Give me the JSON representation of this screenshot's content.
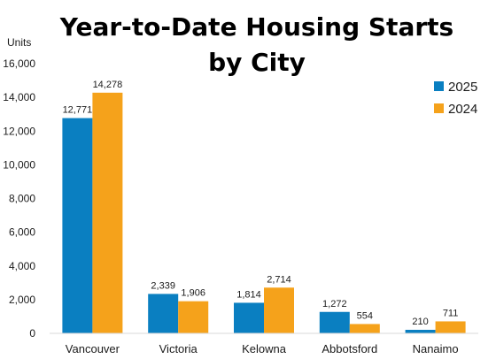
{
  "chart_data": {
    "type": "bar",
    "title_line1": "Year-to-Date Housing Starts",
    "title_line2": "by City",
    "ylabel": "Units",
    "xlabel": "",
    "ylim": [
      0,
      16000
    ],
    "yticks": [
      0,
      2000,
      4000,
      6000,
      8000,
      10000,
      12000,
      14000,
      16000
    ],
    "ytick_labels": [
      "0",
      "2,000",
      "4,000",
      "6,000",
      "8,000",
      "10,000",
      "12,000",
      "14,000",
      "16,000"
    ],
    "categories": [
      "Vancouver",
      "Victoria",
      "Kelowna",
      "Abbotsford",
      "Nanaimo"
    ],
    "series": [
      {
        "name": "2025",
        "color": "#0a7fc1",
        "values": [
          12771,
          2339,
          1814,
          1272,
          210
        ],
        "labels": [
          "12,771",
          "2,339",
          "1,814",
          "1,272",
          "210"
        ]
      },
      {
        "name": "2024",
        "color": "#f5a21b",
        "values": [
          14278,
          1906,
          2714,
          554,
          711
        ],
        "labels": [
          "14,278",
          "1,906",
          "2,714",
          "554",
          "711"
        ]
      }
    ],
    "grid": false,
    "legend_position": "top-right"
  }
}
